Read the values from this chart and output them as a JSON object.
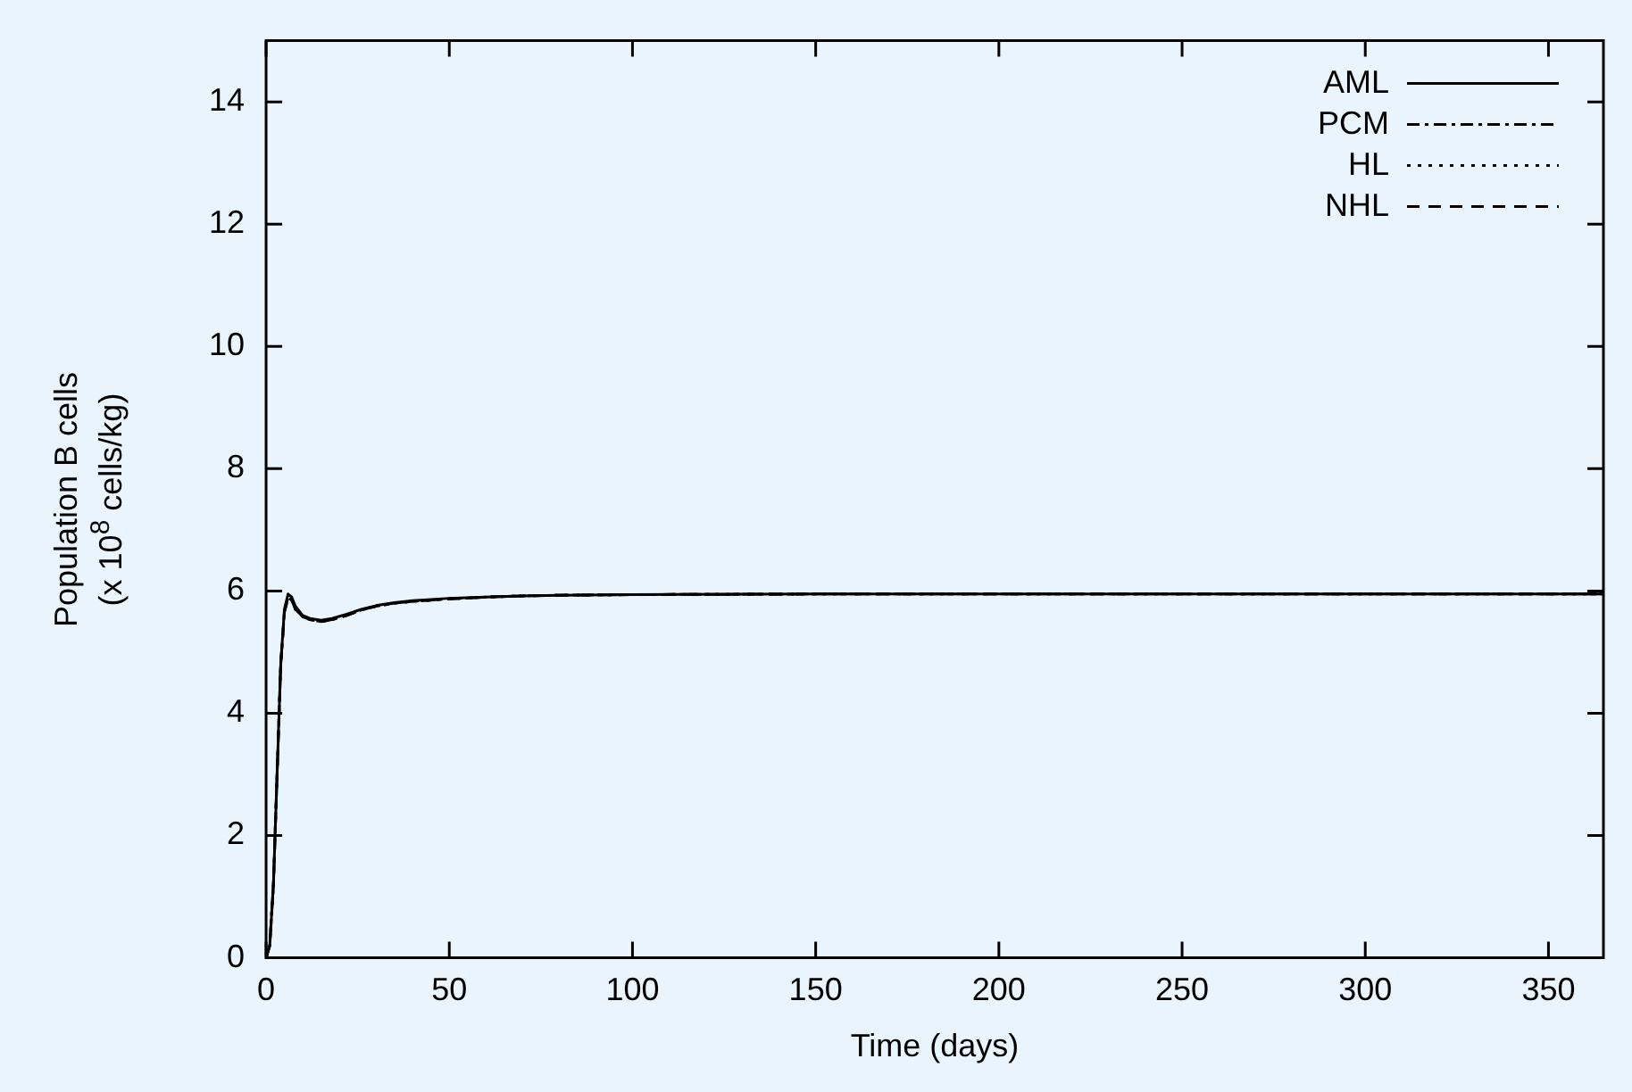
{
  "chart_data": {
    "type": "line",
    "xlabel": "Time (days)",
    "ylabel": "Population B cells\n(x 10$^{8}$ cells/kg)",
    "x": [
      0,
      1,
      2,
      3,
      4,
      5,
      6,
      7,
      8,
      10,
      12,
      15,
      18,
      22,
      26,
      30,
      35,
      40,
      50,
      60,
      70,
      80,
      100,
      150,
      200,
      250,
      300,
      365
    ],
    "series": [
      {
        "name": "AML",
        "color": "#000000",
        "line_style": "solid",
        "values": [
          0,
          0.2,
          1.2,
          3,
          4.8,
          5.7,
          5.95,
          5.9,
          5.75,
          5.6,
          5.55,
          5.52,
          5.55,
          5.62,
          5.7,
          5.76,
          5.81,
          5.84,
          5.88,
          5.9,
          5.92,
          5.93,
          5.94,
          5.95,
          5.95,
          5.95,
          5.95,
          5.95
        ]
      },
      {
        "name": "PCM",
        "color": "#000000",
        "line_style": "dashdot",
        "values": [
          0,
          0.2,
          1.2,
          3,
          4.8,
          5.65,
          5.9,
          5.85,
          5.7,
          5.58,
          5.53,
          5.5,
          5.53,
          5.6,
          5.69,
          5.75,
          5.8,
          5.83,
          5.87,
          5.9,
          5.92,
          5.93,
          5.94,
          5.95,
          5.95,
          5.95,
          5.95,
          5.95
        ]
      },
      {
        "name": "HL",
        "color": "#000000",
        "line_style": "dotted",
        "values": [
          0,
          0.2,
          1.2,
          3,
          4.8,
          5.65,
          5.9,
          5.85,
          5.7,
          5.58,
          5.53,
          5.5,
          5.53,
          5.6,
          5.69,
          5.75,
          5.8,
          5.83,
          5.87,
          5.9,
          5.92,
          5.93,
          5.94,
          5.95,
          5.95,
          5.95,
          5.95,
          5.95
        ]
      },
      {
        "name": "NHL",
        "color": "#000000",
        "line_style": "dashed",
        "values": [
          0,
          0.2,
          1.2,
          3,
          4.8,
          5.65,
          5.9,
          5.85,
          5.7,
          5.58,
          5.53,
          5.5,
          5.53,
          5.6,
          5.69,
          5.75,
          5.8,
          5.83,
          5.87,
          5.9,
          5.92,
          5.93,
          5.94,
          5.95,
          5.95,
          5.95,
          5.95,
          5.95
        ]
      }
    ],
    "xlim": [
      0,
      365
    ],
    "xticks": [
      0,
      50,
      100,
      150,
      200,
      250,
      300,
      350
    ],
    "ylim": [
      0,
      15
    ],
    "yticks": [
      0,
      2,
      4,
      6,
      8,
      10,
      12,
      14
    ],
    "grid": false,
    "legend": "top right",
    "marker": "none"
  }
}
